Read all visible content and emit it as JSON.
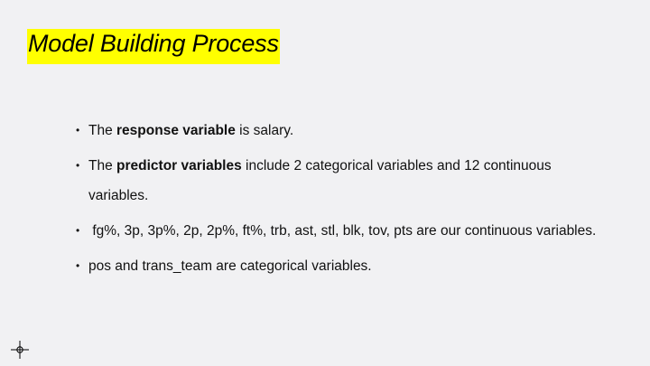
{
  "slide": {
    "title": "Model Building Process",
    "title_highlight_color": "#ffff00",
    "bullet_glyph": "•",
    "bullets": [
      {
        "pre": "The ",
        "bold": "response variable",
        "post": " is salary."
      },
      {
        "pre": "The ",
        "bold": "predictor variables",
        "post": " include 2 categorical variables and 12 continuous variables."
      },
      {
        "text": " fg%, 3p, 3p%, 2p, 2p%, ft%, trb, ast, stl, blk, tov, pts are our continuous variables."
      },
      {
        "text": "pos and trans_team are categorical variables."
      }
    ]
  },
  "cursor": {
    "icon": "crosshair-move-icon"
  }
}
